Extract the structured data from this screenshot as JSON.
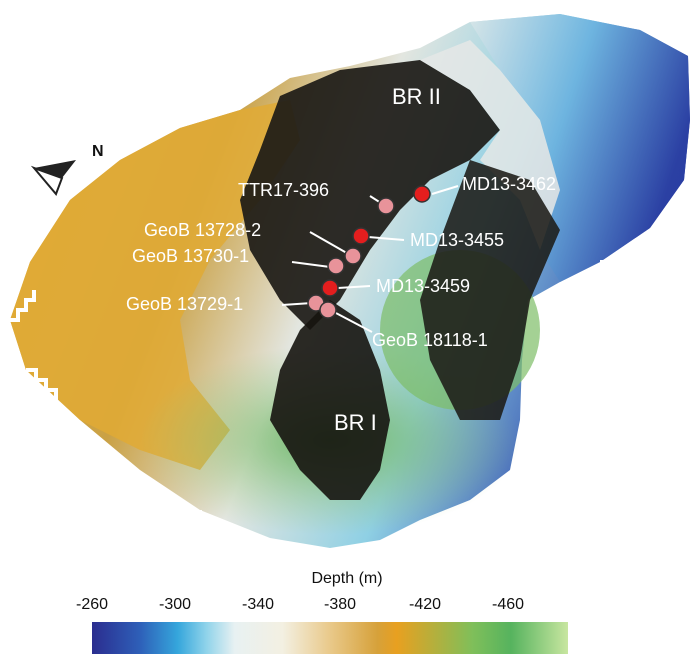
{
  "north_label": "N",
  "regions": [
    {
      "id": "br2",
      "label": "BR II"
    },
    {
      "id": "br1",
      "label": "BR I"
    }
  ],
  "sites": [
    {
      "label": "MD13-3462",
      "marker": "red"
    },
    {
      "label": "TTR17-396",
      "marker": "pink"
    },
    {
      "label": "MD13-3455",
      "marker": "red"
    },
    {
      "label": "GeoB 13728-2",
      "marker": "pink"
    },
    {
      "label": "GeoB 13730-1",
      "marker": "pink"
    },
    {
      "label": "MD13-3459",
      "marker": "red"
    },
    {
      "label": "GeoB 13729-1",
      "marker": "pink"
    },
    {
      "label": "GeoB 18118-1",
      "marker": "pink"
    }
  ],
  "colorbar": {
    "title": "Depth (m)",
    "ticks": [
      "-260",
      "-300",
      "-340",
      "-380",
      "-420",
      "-460"
    ]
  },
  "colors": {
    "red": "#e41e1e",
    "pink": "#e8939a"
  }
}
